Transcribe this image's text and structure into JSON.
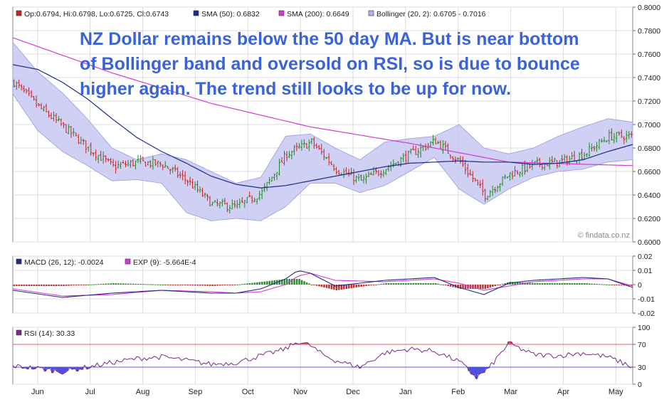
{
  "watermark": "© findata.co.nz",
  "annotation": {
    "lines": [
      "NZ Dollar remains below the 50 day MA. But is near bottom",
      "of Bollinger band and oversold on RSI, so is due to bounce",
      "higher again. The trend still looks to be up for now."
    ],
    "color": "#3a63d8"
  },
  "colors": {
    "price_up": "#1f8a1f",
    "price_down": "#cc1f1f",
    "sma50": "#1c2c8a",
    "sma200": "#d23bd2",
    "bollinger_fill": "#c7c8f2",
    "bollinger_edge": "#9a9be0",
    "macd": "#1c2c8a",
    "exp": "#d23bd2",
    "hist_pos": "#2e8b2e",
    "hist_neg": "#b73333",
    "rsi": "#7a2a86",
    "rsi_over": "#ff4444",
    "rsi_under": "#5050e0",
    "grid": "#dddddd",
    "rsi_70_line": "#e06060",
    "rsi_30_line": "#6060e0"
  },
  "chart_data": [
    {
      "type": "line",
      "panel": "price",
      "legend": [
        {
          "label": "Op:0.6794, Hi:0.6798, Lo:0.6725, Cl:0.6743",
          "swatch": "#cc1f1f"
        },
        {
          "label": "SMA (50): 0.6832",
          "swatch": "#1c2c8a"
        },
        {
          "label": "SMA (200): 0.6649",
          "swatch": "#d23bd2"
        },
        {
          "label": "Bollinger (20, 2): 0.6705 - 0.7016",
          "swatch": "#b0b2ee"
        }
      ],
      "yticks": [
        "0.8000",
        "0.7800",
        "0.7600",
        "0.7400",
        "0.7200",
        "0.7000",
        "0.6800",
        "0.6600",
        "0.6400",
        "0.6200",
        "0.6000"
      ],
      "ylim": [
        0.6,
        0.8
      ],
      "series": [
        {
          "name": "Close",
          "x": [
            0,
            10,
            20,
            30,
            40,
            50,
            60,
            70,
            80,
            90,
            100,
            110,
            120,
            130,
            140,
            150,
            160,
            170,
            180,
            190,
            200,
            210,
            220,
            230,
            240
          ],
          "values": [
            0.736,
            0.715,
            0.698,
            0.68,
            0.664,
            0.668,
            0.666,
            0.652,
            0.632,
            0.63,
            0.642,
            0.675,
            0.685,
            0.662,
            0.652,
            0.663,
            0.675,
            0.686,
            0.668,
            0.64,
            0.658,
            0.666,
            0.668,
            0.675,
            0.69
          ]
        },
        {
          "name": "SMA (50)",
          "x": [
            0,
            10,
            20,
            30,
            40,
            50,
            60,
            70,
            80,
            90,
            100,
            110,
            120,
            130,
            140,
            150,
            160,
            170,
            180,
            190,
            200,
            210,
            220,
            230,
            240,
            250
          ],
          "values": [
            0.751,
            0.747,
            0.736,
            0.722,
            0.705,
            0.689,
            0.677,
            0.667,
            0.656,
            0.649,
            0.646,
            0.648,
            0.652,
            0.656,
            0.66,
            0.664,
            0.667,
            0.668,
            0.669,
            0.668,
            0.668,
            0.666,
            0.667,
            0.67,
            0.677,
            0.683
          ]
        },
        {
          "name": "SMA (200)",
          "x": [
            0,
            40,
            80,
            120,
            160,
            200,
            250
          ],
          "values": [
            0.774,
            0.744,
            0.718,
            0.698,
            0.684,
            0.668,
            0.665
          ]
        },
        {
          "name": "Bollinger upper",
          "x": [
            0,
            10,
            20,
            30,
            40,
            50,
            60,
            70,
            80,
            90,
            100,
            110,
            120,
            130,
            140,
            150,
            160,
            170,
            180,
            190,
            200,
            210,
            220,
            230,
            240,
            250
          ],
          "values": [
            0.77,
            0.745,
            0.727,
            0.705,
            0.68,
            0.67,
            0.675,
            0.67,
            0.66,
            0.65,
            0.655,
            0.69,
            0.692,
            0.68,
            0.67,
            0.685,
            0.688,
            0.69,
            0.7,
            0.68,
            0.675,
            0.68,
            0.69,
            0.698,
            0.705,
            0.702
          ]
        },
        {
          "name": "Bollinger lower",
          "x": [
            0,
            10,
            20,
            30,
            40,
            50,
            60,
            70,
            80,
            90,
            100,
            110,
            120,
            130,
            140,
            150,
            160,
            170,
            180,
            190,
            200,
            210,
            220,
            230,
            240,
            250
          ],
          "values": [
            0.726,
            0.695,
            0.677,
            0.665,
            0.652,
            0.653,
            0.65,
            0.625,
            0.618,
            0.62,
            0.618,
            0.63,
            0.65,
            0.65,
            0.642,
            0.648,
            0.66,
            0.672,
            0.645,
            0.632,
            0.645,
            0.655,
            0.66,
            0.662,
            0.668,
            0.67
          ]
        }
      ]
    },
    {
      "type": "line",
      "panel": "macd",
      "legend": [
        {
          "label": "MACD (26, 12): -0.0024",
          "swatch": "#1c2c8a"
        },
        {
          "label": "EXP (9): -5.664E-4",
          "swatch": "#d23bd2"
        }
      ],
      "yticks": [
        "0.02",
        "0.01",
        "0",
        "-0.01",
        "-0.02"
      ],
      "ylim": [
        -0.02,
        0.02
      ],
      "series": [
        {
          "name": "MACD (26, 12)",
          "x": [
            0,
            20,
            40,
            60,
            80,
            90,
            100,
            110,
            115,
            120,
            130,
            150,
            170,
            180,
            190,
            200,
            210,
            220,
            230,
            240,
            250
          ],
          "values": [
            -0.004,
            -0.009,
            -0.006,
            -0.004,
            -0.006,
            -0.006,
            -0.003,
            0.004,
            0.01,
            0.008,
            -0.001,
            0.003,
            0.005,
            -0.002,
            -0.007,
            0.001,
            0.003,
            0.004,
            0.005,
            0.004,
            -0.002
          ]
        },
        {
          "name": "EXP (9)",
          "x": [
            0,
            20,
            40,
            60,
            80,
            90,
            100,
            110,
            115,
            120,
            130,
            150,
            170,
            180,
            190,
            200,
            210,
            220,
            230,
            240,
            250
          ],
          "values": [
            -0.003,
            -0.008,
            -0.007,
            -0.004,
            -0.005,
            -0.006,
            -0.005,
            0.0,
            0.006,
            0.008,
            0.003,
            0.002,
            0.004,
            0.001,
            -0.004,
            -0.001,
            0.002,
            0.003,
            0.004,
            0.004,
            -0.001
          ]
        }
      ]
    },
    {
      "type": "line",
      "panel": "rsi",
      "legend": [
        {
          "label": "RSI (14): 30.33",
          "swatch": "#7a2a86"
        }
      ],
      "yticks": [
        "100",
        "70",
        "30",
        "0"
      ],
      "ylim": [
        0,
        100
      ],
      "reference_lines": [
        70,
        30
      ],
      "series": [
        {
          "name": "RSI (14)",
          "x": [
            0,
            10,
            20,
            30,
            40,
            50,
            60,
            70,
            80,
            90,
            100,
            110,
            115,
            120,
            125,
            130,
            140,
            150,
            160,
            170,
            180,
            187,
            192,
            200,
            210,
            220,
            230,
            240,
            250
          ],
          "values": [
            32,
            28,
            22,
            30,
            38,
            45,
            48,
            42,
            35,
            38,
            50,
            62,
            75,
            68,
            52,
            42,
            30,
            55,
            62,
            58,
            40,
            12,
            28,
            72,
            52,
            50,
            55,
            48,
            30
          ]
        }
      ]
    }
  ],
  "x_axis": {
    "months": [
      "Jun",
      "Jul",
      "Aug",
      "Sep",
      "Oct",
      "Nov",
      "Dec",
      "Jan",
      "Feb",
      "Mar",
      "Apr",
      "May"
    ]
  }
}
